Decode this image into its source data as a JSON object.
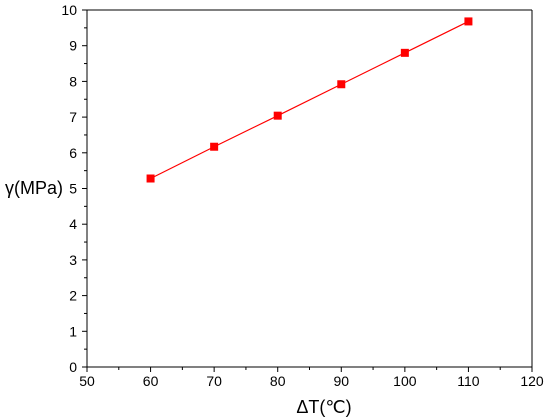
{
  "chart_data": {
    "type": "line",
    "title": "",
    "xlabel": "ΔT(℃)",
    "ylabel": "γ(MPa)",
    "xlim": [
      50,
      120
    ],
    "ylim": [
      0,
      10
    ],
    "x_ticks": [
      50,
      60,
      70,
      80,
      90,
      100,
      110,
      120
    ],
    "y_ticks": [
      0,
      1,
      2,
      3,
      4,
      5,
      6,
      7,
      8,
      9,
      10
    ],
    "grid": false,
    "legend": "none",
    "series": [
      {
        "x": [
          60,
          70,
          80,
          90,
          100,
          110
        ],
        "y": [
          5.28,
          6.17,
          7.04,
          7.92,
          8.8,
          9.68
        ],
        "color": "#ff0000",
        "marker": "square"
      }
    ]
  }
}
